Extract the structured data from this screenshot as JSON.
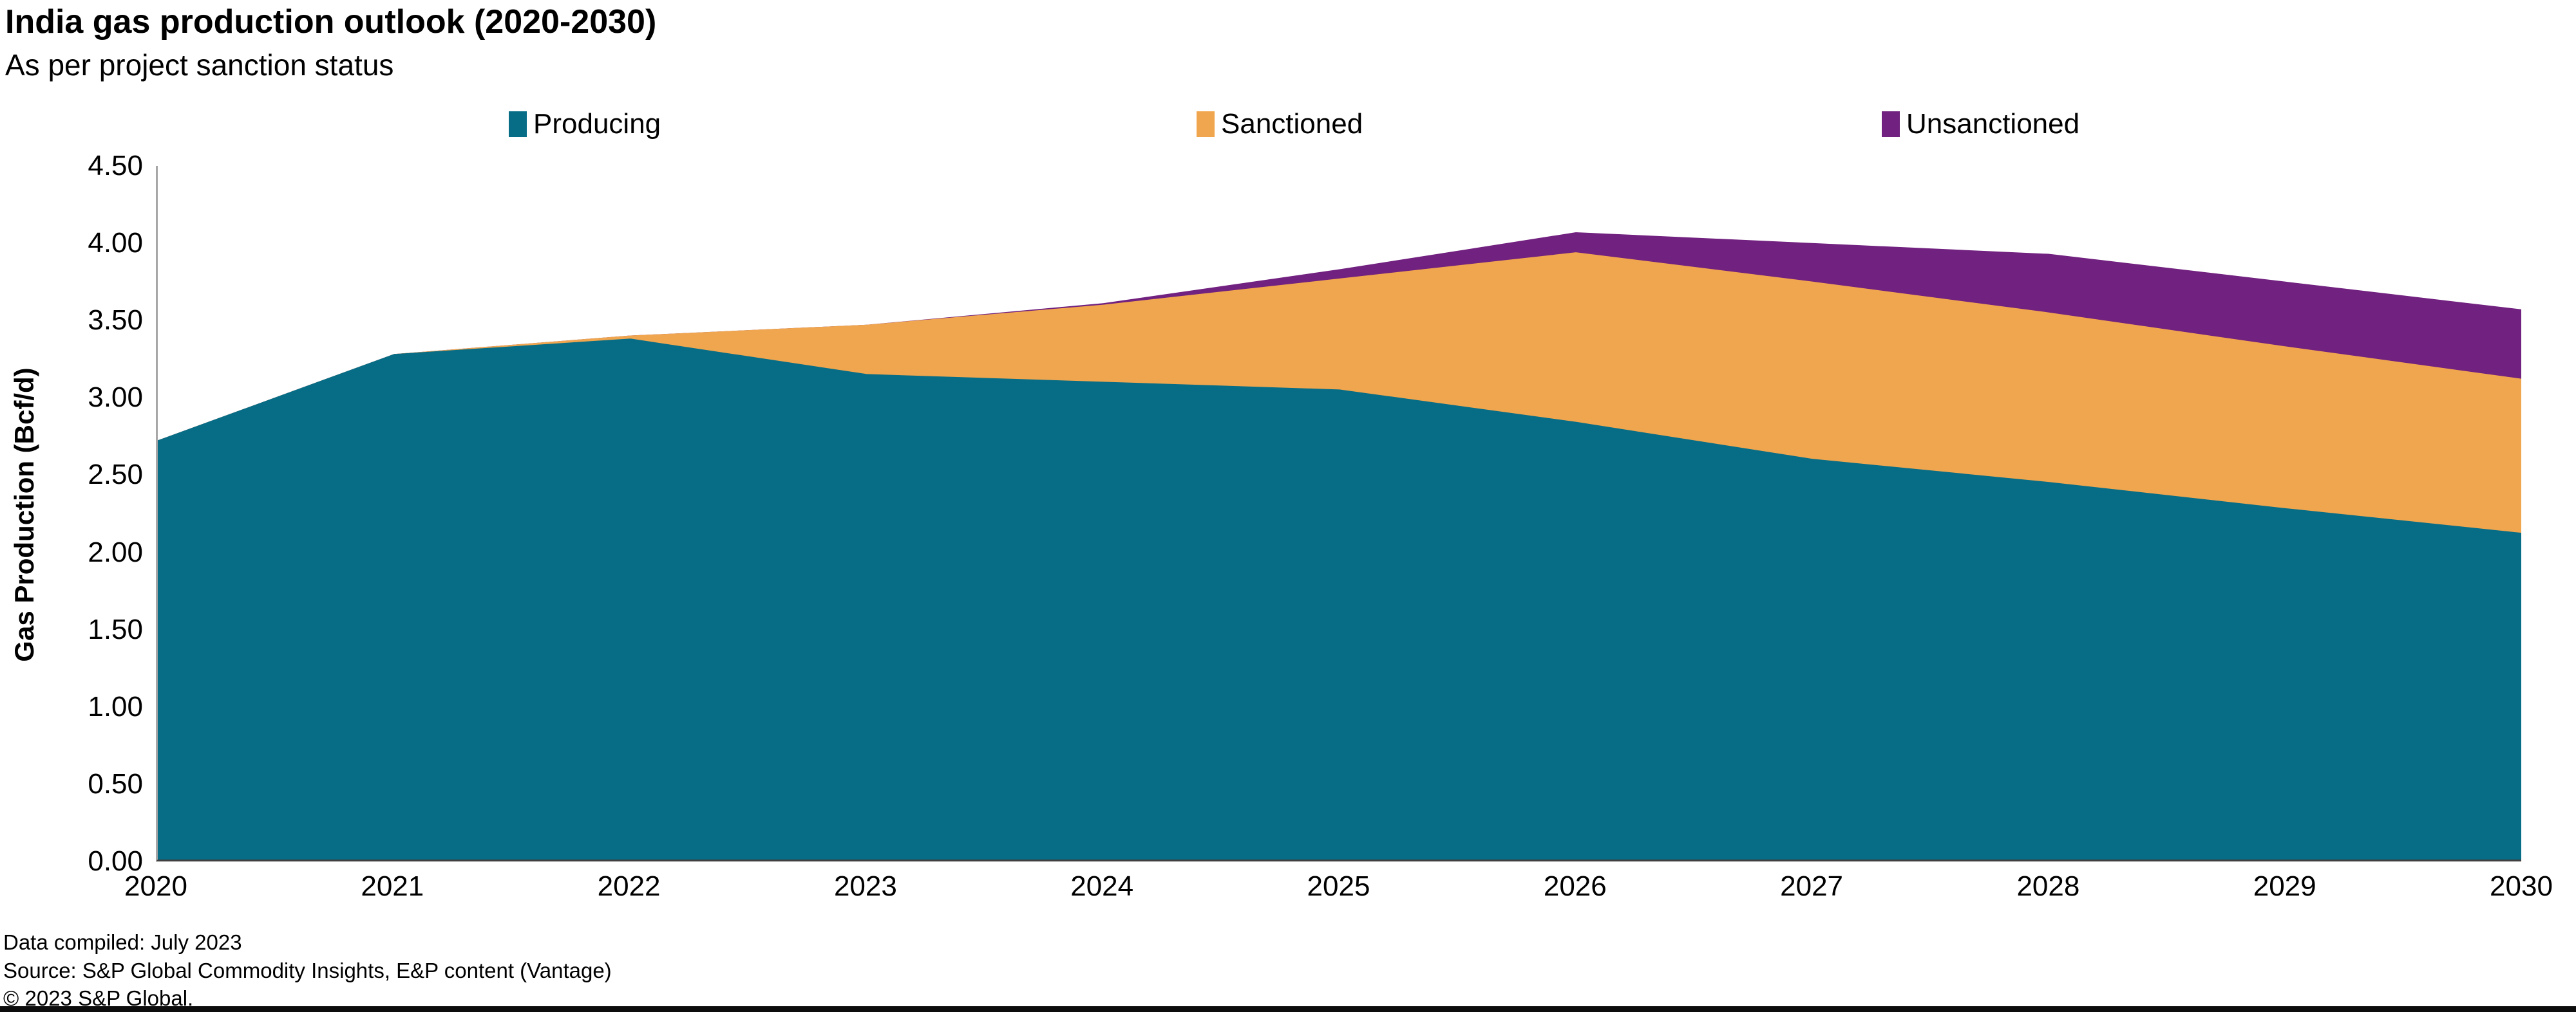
{
  "title": "India gas production outlook (2020-2030)",
  "subtitle": "As per project sanction status",
  "legend": {
    "items": [
      {
        "label": "Producing",
        "color": "#076d87"
      },
      {
        "label": "Sanctioned",
        "color": "#f0a64e"
      },
      {
        "label": "Unsanctioned",
        "color": "#71217f"
      }
    ]
  },
  "y_axis": {
    "title": "Gas Production (Bcf/d)",
    "tick_labels": [
      "4.50",
      "4.00",
      "3.50",
      "3.00",
      "2.50",
      "2.00",
      "1.50",
      "1.00",
      "0.50",
      "0.00"
    ]
  },
  "footer": {
    "compiled": "Data compiled: July 2023",
    "source": "Source: S&P Global Commodity Insights, E&P content (Vantage)",
    "copyright": "© 2023 S&P Global."
  },
  "chart_data": {
    "type": "area",
    "stacked": true,
    "title": "India gas production outlook (2020-2030)",
    "subtitle": "As per project sanction status",
    "xlabel": "",
    "ylabel": "Gas Production (Bcf/d)",
    "ylim": [
      0,
      4.5
    ],
    "y_tick_step": 0.5,
    "grid": false,
    "legend_position": "top",
    "x": [
      2020,
      2021,
      2022,
      2023,
      2024,
      2025,
      2026,
      2027,
      2028,
      2029,
      2030
    ],
    "series": [
      {
        "name": "Producing",
        "color": "#076d87",
        "values": [
          2.72,
          3.28,
          3.38,
          3.15,
          3.1,
          3.05,
          2.84,
          2.6,
          2.45,
          2.28,
          2.12
        ]
      },
      {
        "name": "Sanctioned",
        "color": "#f0a64e",
        "values": [
          0.0,
          0.0,
          0.02,
          0.32,
          0.5,
          0.72,
          1.1,
          1.15,
          1.1,
          1.05,
          1.0
        ]
      },
      {
        "name": "Unsanctioned",
        "color": "#71217f",
        "values": [
          0.0,
          0.0,
          0.0,
          0.0,
          0.01,
          0.06,
          0.13,
          0.25,
          0.38,
          0.42,
          0.45
        ]
      }
    ]
  }
}
